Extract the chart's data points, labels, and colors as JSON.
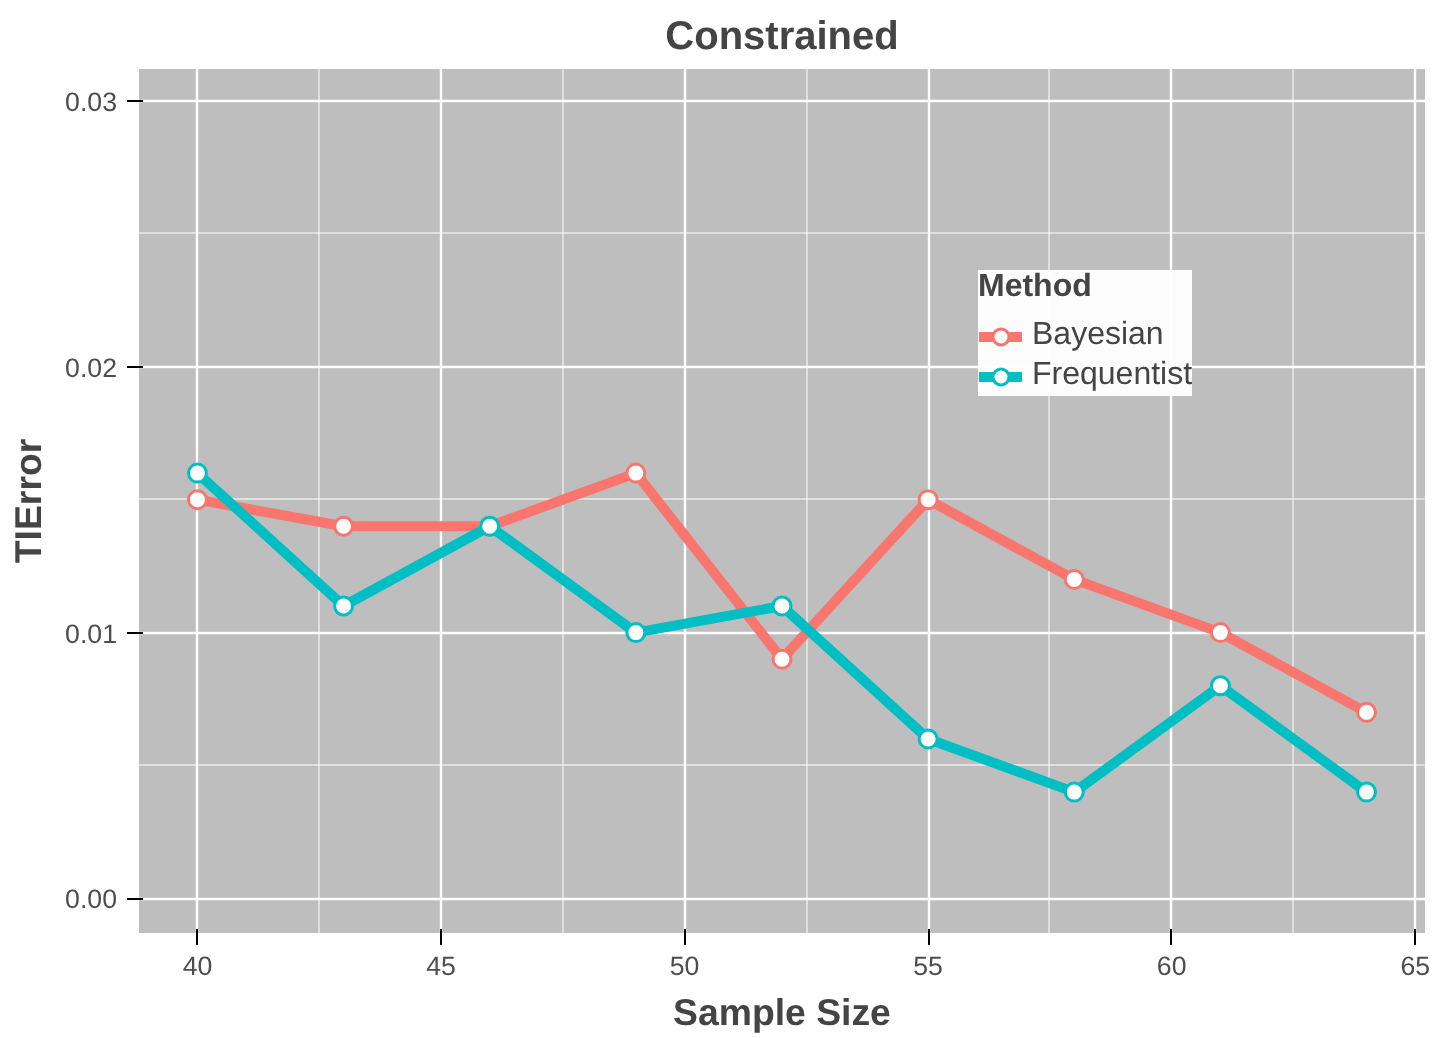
{
  "chart_data": {
    "type": "line",
    "title": "Constrained",
    "xlabel": "Sample Size",
    "ylabel": "TIError",
    "legend_title": "Method",
    "x": [
      40,
      43,
      46,
      49,
      52,
      55,
      58,
      61,
      64
    ],
    "series": [
      {
        "name": "Bayesian",
        "color": "#f8766d",
        "values": [
          0.015,
          0.014,
          0.014,
          0.016,
          0.009,
          0.015,
          0.012,
          0.01,
          0.007
        ]
      },
      {
        "name": "Frequentist",
        "color": "#00bfc4",
        "values": [
          0.016,
          0.011,
          0.014,
          0.01,
          0.011,
          0.006,
          0.004,
          0.008,
          0.004
        ]
      }
    ],
    "xlim": [
      38.8,
      65.2
    ],
    "ylim": [
      -0.0013,
      0.0312
    ],
    "xticks": [
      40,
      45,
      50,
      55,
      60,
      65
    ],
    "yticks": [
      {
        "value": 0,
        "label": "0.00"
      },
      {
        "value": 0.01,
        "label": "0.01"
      },
      {
        "value": 0.02,
        "label": "0.02"
      },
      {
        "value": 0.03,
        "label": "0.03"
      }
    ],
    "grid": true,
    "legend": "top right",
    "marker": "circle",
    "line_style": "solid"
  }
}
